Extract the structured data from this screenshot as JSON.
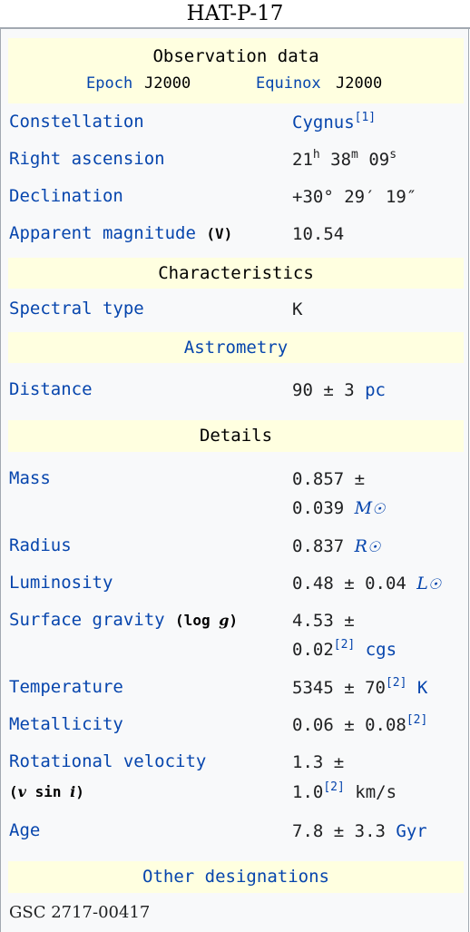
{
  "title": "HAT-P-17",
  "observation": {
    "header": "Observation data",
    "epoch_label": "Epoch",
    "epoch_value": "J2000",
    "equinox_label": "Equinox",
    "equinox_value": "J2000"
  },
  "constellation": {
    "label": "Constellation",
    "value": "Cygnus",
    "ref": "[1]"
  },
  "right_ascension": {
    "label": "Right ascension",
    "h": "21",
    "h_unit": "h",
    "m": " 38",
    "m_unit": "m",
    "s": " 09",
    "s_unit": "s"
  },
  "declination": {
    "label": "Declination",
    "value": "+30° 29′ 19″"
  },
  "apparent_magnitude": {
    "label": "Apparent magnitude",
    "band": "(V)",
    "value": "10.54"
  },
  "characteristics": {
    "header": "Characteristics"
  },
  "spectral_type": {
    "label": "Spectral type",
    "value": "K"
  },
  "astrometry": {
    "header": "Astrometry"
  },
  "distance": {
    "label": "Distance",
    "value": "90 ± 3 ",
    "unit": "pc"
  },
  "details": {
    "header": "Details"
  },
  "mass": {
    "label": "Mass",
    "line1": "0.857 ±",
    "line2": "0.039 ",
    "unit": "M",
    "sun": "☉"
  },
  "radius": {
    "label": "Radius",
    "value": "0.837 ",
    "unit": "R",
    "sun": "☉"
  },
  "luminosity": {
    "label": "Luminosity",
    "value": "0.48 ± 0.04 ",
    "unit": "L",
    "sun": "☉"
  },
  "surface_gravity": {
    "label": "Surface gravity",
    "paren": "(log ",
    "g": "g",
    "paren_close": ")",
    "line1": "4.53 ±",
    "line2": "0.02",
    "ref": "[2]",
    "unit": " cgs"
  },
  "temperature": {
    "label": "Temperature",
    "value": "5345 ± 70",
    "ref": "[2]",
    "unit": " K"
  },
  "metallicity": {
    "label": "Metallicity",
    "value": "0.06 ± 0.08",
    "ref": "[2]"
  },
  "rotational_velocity": {
    "label": "Rotational velocity",
    "sub_open": "(",
    "v": "v",
    "sin": " sin ",
    "i": "i",
    "sub_close": ")",
    "line1": "1.3 ±",
    "line2": "1.0",
    "ref": "[2]",
    "unit": " km/s"
  },
  "age": {
    "label": "Age",
    "value": "7.8 ± 3.3 ",
    "unit": "Gyr"
  },
  "other": {
    "header": "Other designations",
    "value": "GSC 2717-00417"
  }
}
